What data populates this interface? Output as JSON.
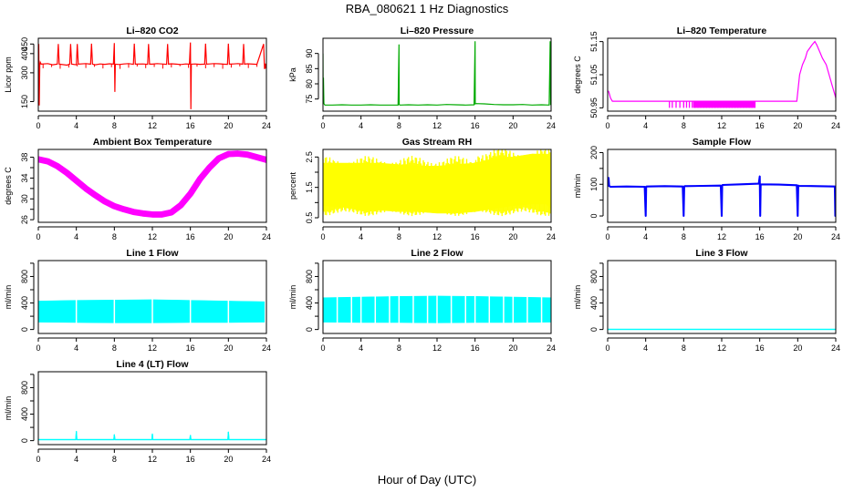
{
  "figure": {
    "title": "RBA_080621  1 Hz Diagnostics",
    "xlabel": "Hour of Day (UTC)"
  },
  "chart_data": [
    {
      "id": "co2",
      "type": "line",
      "title": "Li–820 CO2",
      "ylabel": "Licor ppm",
      "color": "#ff0000",
      "xlim": [
        0,
        24
      ],
      "ylim": [
        100,
        480
      ],
      "xticks": [
        "0",
        "4",
        "8",
        "12",
        "16",
        "20",
        "24"
      ],
      "yticks": [
        "150",
        "300",
        "400",
        "450"
      ],
      "ytick_values": [
        150,
        300,
        400,
        450
      ],
      "series": [
        {
          "x": [
            0.05,
            0.1,
            0.15,
            0.2,
            0.3,
            1.0,
            1.5,
            2.0,
            2.1,
            2.2,
            3.0,
            3.3,
            3.4,
            3.5,
            4.0,
            4.1,
            4.2,
            5.0,
            5.5,
            5.6,
            5.7,
            6.0,
            6.5,
            7.0,
            7.5,
            7.9,
            8.0,
            8.05,
            8.1,
            8.5,
            9.0,
            9.5,
            10.0,
            10.1,
            10.2,
            11.0,
            11.5,
            11.6,
            11.7,
            12.0,
            12.5,
            13.0,
            13.5,
            13.6,
            13.7,
            14.0,
            14.5,
            15.0,
            15.5,
            15.9,
            16.0,
            16.05,
            16.1,
            16.5,
            17.0,
            17.5,
            17.6,
            17.7,
            18.0,
            18.5,
            19.0,
            19.5,
            19.9,
            20.0,
            20.1,
            20.5,
            21.0,
            21.5,
            21.6,
            21.7,
            22.0,
            23.0,
            23.7,
            23.8,
            23.9,
            24.0
          ],
          "y": [
            450,
            130,
            340,
            355,
            345,
            348,
            342,
            345,
            450,
            345,
            340,
            345,
            450,
            345,
            342,
            450,
            345,
            348,
            345,
            452,
            345,
            342,
            346,
            344,
            347,
            345,
            455,
            200,
            345,
            343,
            346,
            348,
            344,
            452,
            345,
            346,
            344,
            450,
            345,
            345,
            348,
            346,
            344,
            450,
            345,
            347,
            345,
            343,
            346,
            345,
            458,
            110,
            345,
            346,
            344,
            345,
            452,
            345,
            346,
            348,
            347,
            345,
            344,
            452,
            345,
            346,
            348,
            345,
            450,
            345,
            347,
            344,
            450,
            320,
            345,
            342
          ]
        }
      ]
    },
    {
      "id": "pressure",
      "type": "line",
      "title": "Li–820 Pressure",
      "ylabel": "kPa",
      "color": "#00aa00",
      "xlim": [
        0,
        24
      ],
      "ylim": [
        71,
        95
      ],
      "xticks": [
        "0",
        "4",
        "8",
        "12",
        "16",
        "20",
        "24"
      ],
      "yticks": [
        "75",
        "80",
        "85",
        "90"
      ],
      "ytick_values": [
        75,
        80,
        85,
        90
      ],
      "series": [
        {
          "x": [
            0.0,
            0.02,
            0.05,
            0.1,
            0.2,
            0.5,
            1,
            2,
            3,
            4,
            5,
            6,
            7,
            7.9,
            8.0,
            8.02,
            8.1,
            9,
            10,
            11,
            12,
            13,
            14,
            15,
            15.9,
            16.0,
            16.02,
            16.1,
            17,
            18,
            19,
            20,
            21,
            22,
            23,
            23.8,
            23.9,
            23.95,
            24.0
          ],
          "y": [
            90,
            74,
            82,
            73.5,
            73,
            73,
            73,
            73.1,
            73,
            73,
            73.1,
            73,
            73,
            73,
            93,
            73.2,
            73,
            73.1,
            73,
            73.1,
            73,
            73.2,
            73.1,
            73,
            73.1,
            94,
            73.4,
            73.5,
            73.4,
            73.2,
            73.1,
            73.1,
            73.2,
            73,
            73.1,
            73,
            94,
            73.2,
            73
          ]
        }
      ]
    },
    {
      "id": "licor_temp",
      "type": "line",
      "title": "Li–820 Temperature",
      "ylabel": "degrees C",
      "color": "#ff00ff",
      "xlim": [
        0,
        24
      ],
      "ylim": [
        50.94,
        51.16
      ],
      "xticks": [
        "0",
        "4",
        "8",
        "12",
        "16",
        "20",
        "24"
      ],
      "yticks": [
        "50.95",
        "51.05",
        "51.15"
      ],
      "ytick_values": [
        50.95,
        51.05,
        51.15
      ],
      "series": [
        {
          "x": [
            0.0,
            0.1,
            0.2,
            0.3,
            0.5,
            1.0,
            2,
            4,
            6,
            8,
            10,
            12,
            14,
            16,
            18,
            19.5,
            19.9,
            20.2,
            20.5,
            20.8,
            21.0,
            21.5,
            21.8,
            22.0,
            22.3,
            22.6,
            23.0,
            23.3,
            23.6,
            23.9,
            24.0
          ],
          "y": [
            51.0,
            51.0,
            50.99,
            50.98,
            50.97,
            50.97,
            50.97,
            50.97,
            50.97,
            50.97,
            50.97,
            50.97,
            50.97,
            50.97,
            50.97,
            50.97,
            50.97,
            51.05,
            51.08,
            51.1,
            51.12,
            51.14,
            51.15,
            51.14,
            51.12,
            51.1,
            51.08,
            51.05,
            51.02,
            50.99,
            50.98
          ]
        }
      ],
      "spikes": {
        "x": [
          6.5,
          6.8,
          7.2,
          7.6,
          8.0,
          8.3,
          8.6,
          8.9,
          9.2,
          9.5,
          9.8,
          10.1,
          10.4,
          10.7,
          11.0,
          11.3,
          11.6,
          11.9,
          12.2,
          12.5,
          12.8,
          13.1,
          13.4,
          13.7,
          14.0,
          14.3,
          14.6,
          14.9,
          15.2,
          15.5
        ],
        "low": 50.95,
        "high": 50.97
      }
    },
    {
      "id": "ambient_temp",
      "type": "line",
      "title": "Ambient Box Temperature",
      "ylabel": "degrees C",
      "color": "#ff00ff",
      "xlim": [
        0,
        24
      ],
      "ylim": [
        25.5,
        39.5
      ],
      "xticks": [
        "0",
        "4",
        "8",
        "12",
        "16",
        "20",
        "24"
      ],
      "yticks": [
        "26",
        "30",
        "34",
        "38"
      ],
      "ytick_values": [
        26,
        28,
        30,
        32,
        34,
        36,
        38
      ],
      "series": [
        {
          "x": [
            0,
            1,
            2,
            3,
            4,
            5,
            6,
            7,
            8,
            9,
            10,
            11,
            12,
            13,
            14,
            15,
            16,
            17,
            18,
            19,
            20,
            21,
            22,
            23,
            24
          ],
          "y": [
            37.6,
            37.2,
            36.3,
            35.0,
            33.5,
            32.0,
            30.7,
            29.5,
            28.6,
            28.0,
            27.5,
            27.2,
            27.0,
            27.0,
            27.4,
            28.8,
            31.0,
            33.8,
            36.0,
            37.8,
            38.6,
            38.7,
            38.5,
            38.0,
            37.5
          ]
        }
      ],
      "band": 1.2
    },
    {
      "id": "gas_rh",
      "type": "area",
      "title": "Gas Stream RH",
      "ylabel": "percent",
      "color": "#ffff00",
      "xlim": [
        0,
        24
      ],
      "ylim": [
        0.35,
        2.75
      ],
      "xticks": [
        "0",
        "4",
        "8",
        "12",
        "16",
        "20",
        "24"
      ],
      "yticks": [
        "0.5",
        "1.5",
        "2.5"
      ],
      "ytick_values": [
        0.5,
        1.0,
        1.5,
        2.0,
        2.5
      ],
      "upper": {
        "x": [
          0,
          2,
          4,
          6,
          8,
          10,
          12,
          14,
          16,
          18,
          20,
          22,
          23.5,
          24
        ],
        "y": [
          2.3,
          2.3,
          2.3,
          2.3,
          2.25,
          2.2,
          2.2,
          2.25,
          2.3,
          2.45,
          2.5,
          2.6,
          2.6,
          2.4
        ]
      },
      "lower": {
        "x": [
          0,
          2,
          4,
          6,
          8,
          10,
          12,
          14,
          16,
          18,
          20,
          22,
          23.5,
          24
        ],
        "y": [
          0.9,
          0.85,
          0.75,
          0.75,
          0.7,
          0.7,
          0.65,
          0.65,
          0.7,
          0.8,
          0.9,
          0.95,
          0.95,
          0.8
        ]
      }
    },
    {
      "id": "sample_flow",
      "type": "line",
      "title": "Sample Flow",
      "ylabel": "ml/min",
      "color": "#0000ff",
      "xlim": [
        0,
        24
      ],
      "ylim": [
        -20,
        210
      ],
      "xticks": [
        "0",
        "4",
        "8",
        "12",
        "16",
        "20",
        "24"
      ],
      "yticks": [
        "0",
        "100",
        "200"
      ],
      "ytick_values": [
        0,
        50,
        100,
        150,
        200
      ],
      "series": [
        {
          "x": [
            0.0,
            0.1,
            0.15,
            0.3,
            2,
            3.9,
            4.0,
            4.05,
            4.1,
            6,
            7.9,
            8.0,
            8.05,
            8.1,
            10,
            11.9,
            12.0,
            12.05,
            12.1,
            14,
            15.9,
            16.0,
            16.05,
            16.1,
            18,
            19.9,
            20.0,
            20.05,
            20.1,
            22,
            23.9,
            23.95,
            24.0
          ],
          "y": [
            95,
            120,
            95,
            92,
            93,
            92,
            0,
            92,
            93,
            94,
            93,
            0,
            93,
            94,
            95,
            96,
            0,
            95,
            98,
            100,
            102,
            125,
            0,
            100,
            99,
            97,
            0,
            96,
            95,
            94,
            93,
            0,
            92
          ]
        }
      ],
      "band": 6
    },
    {
      "id": "line1_flow",
      "type": "area",
      "title": "Line 1 Flow",
      "ylabel": "ml/min",
      "color": "#00ffff",
      "xlim": [
        0,
        24
      ],
      "ylim": [
        -60,
        1040
      ],
      "xticks": [
        "0",
        "4",
        "8",
        "12",
        "16",
        "20",
        "24"
      ],
      "yticks": [
        "0",
        "400",
        "800"
      ],
      "ytick_values": [
        0,
        200,
        400,
        600,
        800,
        1000
      ],
      "upper": {
        "x": [
          0,
          4,
          8,
          12,
          16,
          20,
          23.8
        ],
        "y": [
          430,
          440,
          445,
          450,
          440,
          430,
          420
        ]
      },
      "lower": {
        "x": [
          0,
          4,
          8,
          12,
          16,
          20,
          23.8
        ],
        "y": [
          110,
          105,
          100,
          100,
          105,
          105,
          110
        ]
      },
      "gaps": [
        4.0,
        8.0,
        12.0,
        16.0,
        20.0,
        23.9
      ]
    },
    {
      "id": "line2_flow",
      "type": "area",
      "title": "Line 2 Flow",
      "ylabel": "ml/min",
      "color": "#00ffff",
      "xlim": [
        0,
        24
      ],
      "ylim": [
        -60,
        1040
      ],
      "xticks": [
        "0",
        "4",
        "8",
        "12",
        "16",
        "20",
        "24"
      ],
      "yticks": [
        "0",
        "400",
        "800"
      ],
      "ytick_values": [
        0,
        200,
        400,
        600,
        800,
        1000
      ],
      "upper": {
        "x": [
          0,
          4,
          8,
          12,
          16,
          20,
          24
        ],
        "y": [
          480,
          490,
          500,
          505,
          500,
          490,
          480
        ]
      },
      "lower": {
        "x": [
          0,
          4,
          8,
          12,
          16,
          20,
          24
        ],
        "y": [
          110,
          105,
          105,
          100,
          105,
          105,
          110
        ]
      },
      "gaps": [
        1.5,
        3.0,
        4.0,
        5.5,
        7.0,
        8.0,
        9.5,
        11.0,
        12.0,
        13.5,
        15.0,
        16.0,
        17.5,
        19.0,
        20.0,
        21.5,
        23.0
      ]
    },
    {
      "id": "line3_flow",
      "type": "line",
      "title": "Line 3 Flow",
      "ylabel": "ml/min",
      "color": "#00ffff",
      "xlim": [
        0,
        24
      ],
      "ylim": [
        -60,
        1040
      ],
      "xticks": [
        "0",
        "4",
        "8",
        "12",
        "16",
        "20",
        "24"
      ],
      "yticks": [
        "0",
        "400",
        "800"
      ],
      "ytick_values": [
        0,
        200,
        400,
        600,
        800,
        1000
      ],
      "series": [
        {
          "x": [
            0,
            4,
            8,
            12,
            16,
            20,
            24
          ],
          "y": [
            2,
            2,
            2,
            2,
            2,
            2,
            2
          ]
        }
      ],
      "band": 12
    },
    {
      "id": "line4_flow",
      "type": "line",
      "title": "Line 4 (LT) Flow",
      "ylabel": "ml/min",
      "color": "#00ffff",
      "xlim": [
        0,
        24
      ],
      "ylim": [
        -60,
        1040
      ],
      "xticks": [
        "0",
        "4",
        "8",
        "12",
        "16",
        "20",
        "24"
      ],
      "yticks": [
        "0",
        "400",
        "800"
      ],
      "ytick_values": [
        0,
        200,
        400,
        600,
        800,
        1000
      ],
      "series": [
        {
          "x": [
            0,
            2,
            3.95,
            4.0,
            4.05,
            6,
            7.95,
            8.0,
            8.05,
            10,
            11.95,
            12.0,
            12.05,
            14,
            15.95,
            16.0,
            16.05,
            18,
            19.95,
            20.0,
            20.05,
            22,
            24
          ],
          "y": [
            15,
            15,
            15,
            140,
            15,
            15,
            15,
            90,
            15,
            15,
            15,
            100,
            15,
            15,
            15,
            80,
            15,
            15,
            15,
            130,
            15,
            15,
            15
          ]
        }
      ],
      "band": 10
    }
  ]
}
